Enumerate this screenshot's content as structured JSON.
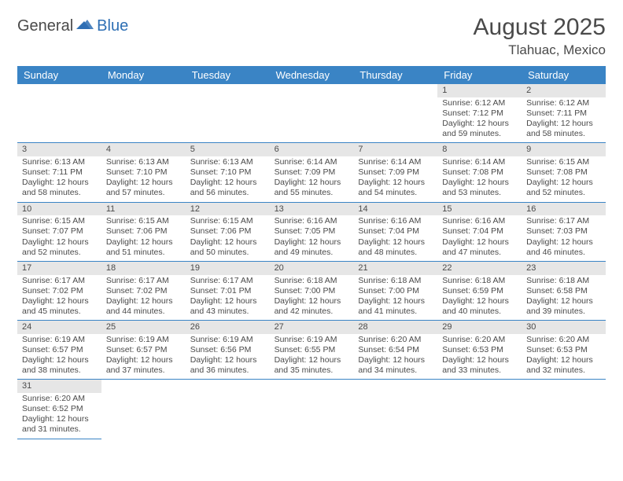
{
  "logo": {
    "text1": "General",
    "text2": "Blue"
  },
  "title": "August 2025",
  "location": "Tlahuac, Mexico",
  "colors": {
    "header_bg": "#3a84c5",
    "header_fg": "#ffffff",
    "date_bg": "#e6e6e6",
    "text": "#4a4a4a",
    "divider": "#3a84c5",
    "logo_blue": "#2e6fb4"
  },
  "day_names": [
    "Sunday",
    "Monday",
    "Tuesday",
    "Wednesday",
    "Thursday",
    "Friday",
    "Saturday"
  ],
  "weeks": [
    [
      null,
      null,
      null,
      null,
      null,
      {
        "n": "1",
        "sr": "Sunrise: 6:12 AM",
        "ss": "Sunset: 7:12 PM",
        "dl": "Daylight: 12 hours and 59 minutes."
      },
      {
        "n": "2",
        "sr": "Sunrise: 6:12 AM",
        "ss": "Sunset: 7:11 PM",
        "dl": "Daylight: 12 hours and 58 minutes."
      }
    ],
    [
      {
        "n": "3",
        "sr": "Sunrise: 6:13 AM",
        "ss": "Sunset: 7:11 PM",
        "dl": "Daylight: 12 hours and 58 minutes."
      },
      {
        "n": "4",
        "sr": "Sunrise: 6:13 AM",
        "ss": "Sunset: 7:10 PM",
        "dl": "Daylight: 12 hours and 57 minutes."
      },
      {
        "n": "5",
        "sr": "Sunrise: 6:13 AM",
        "ss": "Sunset: 7:10 PM",
        "dl": "Daylight: 12 hours and 56 minutes."
      },
      {
        "n": "6",
        "sr": "Sunrise: 6:14 AM",
        "ss": "Sunset: 7:09 PM",
        "dl": "Daylight: 12 hours and 55 minutes."
      },
      {
        "n": "7",
        "sr": "Sunrise: 6:14 AM",
        "ss": "Sunset: 7:09 PM",
        "dl": "Daylight: 12 hours and 54 minutes."
      },
      {
        "n": "8",
        "sr": "Sunrise: 6:14 AM",
        "ss": "Sunset: 7:08 PM",
        "dl": "Daylight: 12 hours and 53 minutes."
      },
      {
        "n": "9",
        "sr": "Sunrise: 6:15 AM",
        "ss": "Sunset: 7:08 PM",
        "dl": "Daylight: 12 hours and 52 minutes."
      }
    ],
    [
      {
        "n": "10",
        "sr": "Sunrise: 6:15 AM",
        "ss": "Sunset: 7:07 PM",
        "dl": "Daylight: 12 hours and 52 minutes."
      },
      {
        "n": "11",
        "sr": "Sunrise: 6:15 AM",
        "ss": "Sunset: 7:06 PM",
        "dl": "Daylight: 12 hours and 51 minutes."
      },
      {
        "n": "12",
        "sr": "Sunrise: 6:15 AM",
        "ss": "Sunset: 7:06 PM",
        "dl": "Daylight: 12 hours and 50 minutes."
      },
      {
        "n": "13",
        "sr": "Sunrise: 6:16 AM",
        "ss": "Sunset: 7:05 PM",
        "dl": "Daylight: 12 hours and 49 minutes."
      },
      {
        "n": "14",
        "sr": "Sunrise: 6:16 AM",
        "ss": "Sunset: 7:04 PM",
        "dl": "Daylight: 12 hours and 48 minutes."
      },
      {
        "n": "15",
        "sr": "Sunrise: 6:16 AM",
        "ss": "Sunset: 7:04 PM",
        "dl": "Daylight: 12 hours and 47 minutes."
      },
      {
        "n": "16",
        "sr": "Sunrise: 6:17 AM",
        "ss": "Sunset: 7:03 PM",
        "dl": "Daylight: 12 hours and 46 minutes."
      }
    ],
    [
      {
        "n": "17",
        "sr": "Sunrise: 6:17 AM",
        "ss": "Sunset: 7:02 PM",
        "dl": "Daylight: 12 hours and 45 minutes."
      },
      {
        "n": "18",
        "sr": "Sunrise: 6:17 AM",
        "ss": "Sunset: 7:02 PM",
        "dl": "Daylight: 12 hours and 44 minutes."
      },
      {
        "n": "19",
        "sr": "Sunrise: 6:17 AM",
        "ss": "Sunset: 7:01 PM",
        "dl": "Daylight: 12 hours and 43 minutes."
      },
      {
        "n": "20",
        "sr": "Sunrise: 6:18 AM",
        "ss": "Sunset: 7:00 PM",
        "dl": "Daylight: 12 hours and 42 minutes."
      },
      {
        "n": "21",
        "sr": "Sunrise: 6:18 AM",
        "ss": "Sunset: 7:00 PM",
        "dl": "Daylight: 12 hours and 41 minutes."
      },
      {
        "n": "22",
        "sr": "Sunrise: 6:18 AM",
        "ss": "Sunset: 6:59 PM",
        "dl": "Daylight: 12 hours and 40 minutes."
      },
      {
        "n": "23",
        "sr": "Sunrise: 6:18 AM",
        "ss": "Sunset: 6:58 PM",
        "dl": "Daylight: 12 hours and 39 minutes."
      }
    ],
    [
      {
        "n": "24",
        "sr": "Sunrise: 6:19 AM",
        "ss": "Sunset: 6:57 PM",
        "dl": "Daylight: 12 hours and 38 minutes."
      },
      {
        "n": "25",
        "sr": "Sunrise: 6:19 AM",
        "ss": "Sunset: 6:57 PM",
        "dl": "Daylight: 12 hours and 37 minutes."
      },
      {
        "n": "26",
        "sr": "Sunrise: 6:19 AM",
        "ss": "Sunset: 6:56 PM",
        "dl": "Daylight: 12 hours and 36 minutes."
      },
      {
        "n": "27",
        "sr": "Sunrise: 6:19 AM",
        "ss": "Sunset: 6:55 PM",
        "dl": "Daylight: 12 hours and 35 minutes."
      },
      {
        "n": "28",
        "sr": "Sunrise: 6:20 AM",
        "ss": "Sunset: 6:54 PM",
        "dl": "Daylight: 12 hours and 34 minutes."
      },
      {
        "n": "29",
        "sr": "Sunrise: 6:20 AM",
        "ss": "Sunset: 6:53 PM",
        "dl": "Daylight: 12 hours and 33 minutes."
      },
      {
        "n": "30",
        "sr": "Sunrise: 6:20 AM",
        "ss": "Sunset: 6:53 PM",
        "dl": "Daylight: 12 hours and 32 minutes."
      }
    ],
    [
      {
        "n": "31",
        "sr": "Sunrise: 6:20 AM",
        "ss": "Sunset: 6:52 PM",
        "dl": "Daylight: 12 hours and 31 minutes."
      },
      null,
      null,
      null,
      null,
      null,
      null
    ]
  ]
}
